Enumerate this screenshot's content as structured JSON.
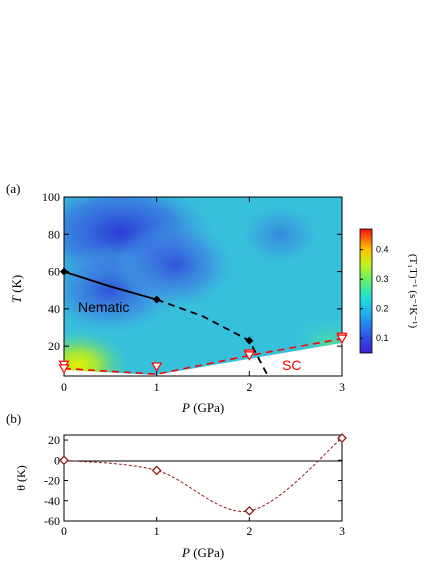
{
  "panel_a": {
    "label": "(a)",
    "xlabel_italic": "P",
    "xlabel_unit": " (GPa)",
    "ylabel_italic": "T",
    "ylabel_unit": " (K)",
    "region_nematic": "Nematic",
    "region_sc": "SC",
    "colorbar_label": "(T₁T)⁻¹ (s⁻¹K⁻¹)",
    "x_ticks": [
      "0",
      "1",
      "2",
      "3"
    ],
    "y_ticks": [
      "20",
      "40",
      "60",
      "80",
      "100"
    ],
    "cbar_ticks": [
      "0.1",
      "0.2",
      "0.3",
      "0.4"
    ]
  },
  "panel_b": {
    "label": "(b)",
    "xlabel_italic": "P",
    "xlabel_unit": " (GPa)",
    "ylabel": "θ (K)",
    "x_ticks": [
      "0",
      "1",
      "2",
      "3"
    ],
    "y_ticks": [
      "20",
      "0",
      "-20",
      "-40",
      "-60"
    ]
  },
  "colors": {
    "nematic_line": "#000000",
    "sc_line": "#ff0000",
    "theta_line": "#8b1a1a",
    "theta_marker": "#8b1a1a",
    "sc_marker": "#ff0000"
  },
  "chart_data": [
    {
      "type": "heatmap",
      "xlim": [
        0,
        3
      ],
      "ylim": [
        4,
        100
      ],
      "colorbar_range": [
        0.05,
        0.47
      ],
      "colormap": "jet",
      "nematic_points": {
        "x": [
          0,
          1,
          2
        ],
        "y": [
          60,
          45,
          23
        ]
      },
      "nematic_line_solid": {
        "x": [
          0,
          0.5,
          1.0
        ],
        "y": [
          60,
          52,
          45
        ]
      },
      "nematic_line_dashed": {
        "x": [
          1.0,
          1.5,
          2.0,
          2.2
        ],
        "y": [
          45,
          36,
          23,
          4
        ]
      },
      "sc_points": [
        {
          "x": 0,
          "y": 10
        },
        {
          "x": 0,
          "y": 8
        },
        {
          "x": 1,
          "y": 9
        },
        {
          "x": 2,
          "y": 16
        },
        {
          "x": 2,
          "y": 15
        },
        {
          "x": 3,
          "y": 25
        },
        {
          "x": 3,
          "y": 24
        }
      ],
      "sc_line_dashed": {
        "x": [
          0,
          1,
          2,
          3
        ],
        "y": [
          8,
          5,
          15,
          24
        ]
      },
      "grid": false
    },
    {
      "type": "scatter",
      "x": [
        0,
        1,
        2,
        3
      ],
      "y": [
        0,
        -10,
        -50,
        22
      ],
      "xlim": [
        0,
        3
      ],
      "ylim": [
        -60,
        25
      ],
      "reference_line_y": 0,
      "grid": false
    }
  ]
}
